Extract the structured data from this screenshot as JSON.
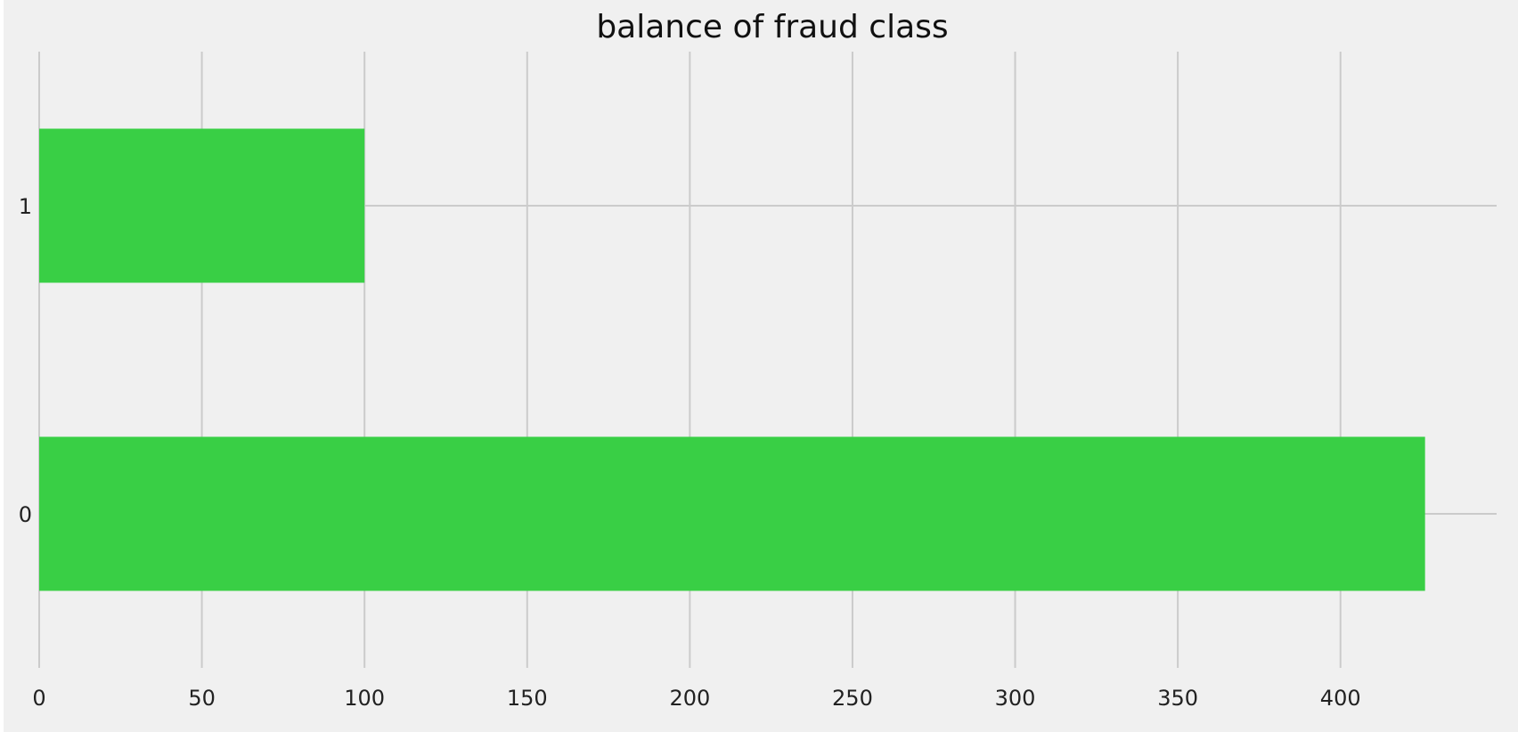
{
  "chart_data": {
    "type": "bar",
    "orientation": "horizontal",
    "title": "balance of fraud class",
    "xlabel": "",
    "ylabel": "",
    "categories": [
      "1",
      "0"
    ],
    "values": [
      100,
      426
    ],
    "xlim": [
      0,
      448
    ],
    "xticks": [
      0,
      50,
      100,
      150,
      200,
      250,
      300,
      350,
      400
    ],
    "grid": true,
    "legend": "none",
    "colors": {
      "bar": "#39cf45",
      "background": "#f0f0f0",
      "grid": "#cbcbcb"
    }
  }
}
